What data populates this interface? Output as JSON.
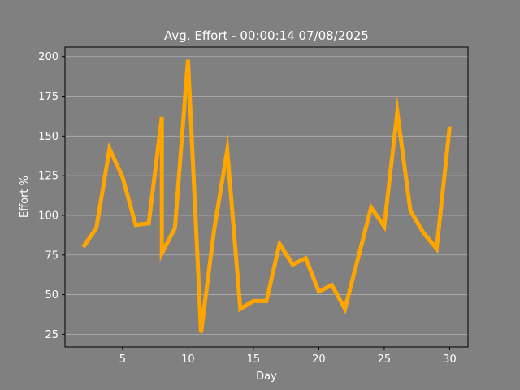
{
  "chart_data": {
    "type": "line",
    "title": "Avg. Effort - 00:00:14 07/08/2025",
    "xlabel": "Day",
    "ylabel": "Effort %",
    "xlim": [
      0.6,
      31.4
    ],
    "ylim": [
      17,
      206
    ],
    "xticks": [
      5,
      10,
      15,
      20,
      25,
      30
    ],
    "yticks": [
      25,
      50,
      75,
      100,
      125,
      150,
      175,
      200
    ],
    "grid": "y",
    "legend": "none",
    "series": [
      {
        "color": "#ffa500",
        "x": [
          2,
          3,
          4,
          5,
          6,
          7,
          8,
          8,
          9,
          10,
          11,
          12,
          13,
          14,
          15,
          16,
          17,
          18,
          19,
          20,
          21,
          22,
          23,
          24,
          25,
          26,
          27,
          28,
          29,
          30
        ],
        "y": [
          80,
          92,
          142,
          124,
          94,
          95,
          162,
          76,
          92,
          198,
          26,
          91,
          141,
          41,
          46,
          46,
          82,
          69,
          73,
          52,
          56,
          41,
          73,
          105,
          93,
          165,
          103,
          89,
          79,
          156
        ]
      }
    ]
  },
  "colors": {
    "background": "#808080",
    "axes_face": "#808080",
    "text": "#ffffff",
    "axis_line": "#000000",
    "grid": "#b0b0b0",
    "line": "#ffa500"
  }
}
